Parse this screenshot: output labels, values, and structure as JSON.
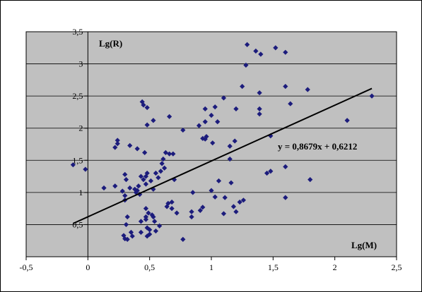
{
  "chart_data": {
    "type": "scatter",
    "title": "",
    "ylabel": "Lg(R)",
    "xlabel": "Lg(M)",
    "xlim": [
      -0.5,
      2.5
    ],
    "ylim": [
      0,
      3.5
    ],
    "x_ticks": [
      "-0,5",
      "0",
      "0,5",
      "1",
      "1,5",
      "2",
      "2,5"
    ],
    "y_ticks": [
      "0,5",
      "1",
      "1,5",
      "2",
      "2,5",
      "3",
      "3,5"
    ],
    "grid": true,
    "plot_background": "#c0c0c0",
    "marker_color": "#1c1c7c",
    "trendline": {
      "slope": 0.8679,
      "intercept": 0.6212,
      "x_range": [
        -0.12,
        2.3
      ],
      "label": "y = 0,8679x + 0,6212"
    },
    "points": [
      [
        -0.12,
        1.43
      ],
      [
        -0.02,
        1.36
      ],
      [
        0.13,
        1.07
      ],
      [
        0.22,
        1.1
      ],
      [
        0.22,
        1.7
      ],
      [
        0.24,
        1.81
      ],
      [
        0.24,
        1.76
      ],
      [
        0.28,
        1.02
      ],
      [
        0.29,
        0.33
      ],
      [
        0.3,
        0.28
      ],
      [
        0.3,
        1.28
      ],
      [
        0.3,
        0.95
      ],
      [
        0.3,
        0.88
      ],
      [
        0.31,
        1.2
      ],
      [
        0.31,
        0.5
      ],
      [
        0.32,
        0.27
      ],
      [
        0.32,
        0.62
      ],
      [
        0.34,
        1.73
      ],
      [
        0.34,
        1.07
      ],
      [
        0.35,
        0.38
      ],
      [
        0.36,
        0.32
      ],
      [
        0.38,
        1.05
      ],
      [
        0.39,
        1.0
      ],
      [
        0.4,
        1.68
      ],
      [
        0.4,
        1.03
      ],
      [
        0.41,
        1.1
      ],
      [
        0.42,
        0.97
      ],
      [
        0.43,
        0.55
      ],
      [
        0.43,
        0.38
      ],
      [
        0.43,
        1.25
      ],
      [
        0.44,
        2.41
      ],
      [
        0.45,
        2.36
      ],
      [
        0.45,
        1.2
      ],
      [
        0.46,
        1.62
      ],
      [
        0.47,
        1.25
      ],
      [
        0.47,
        1.13
      ],
      [
        0.47,
        0.75
      ],
      [
        0.47,
        0.62
      ],
      [
        0.47,
        0.58
      ],
      [
        0.48,
        0.45
      ],
      [
        0.48,
        0.32
      ],
      [
        0.48,
        2.32
      ],
      [
        0.48,
        2.05
      ],
      [
        0.48,
        1.3
      ],
      [
        0.49,
        0.68
      ],
      [
        0.5,
        0.42
      ],
      [
        0.5,
        0.35
      ],
      [
        0.51,
        1.18
      ],
      [
        0.52,
        0.65
      ],
      [
        0.53,
        0.62
      ],
      [
        0.53,
        2.12
      ],
      [
        0.53,
        1.05
      ],
      [
        0.54,
        0.55
      ],
      [
        0.55,
        0.4
      ],
      [
        0.55,
        1.3
      ],
      [
        0.57,
        1.23
      ],
      [
        0.58,
        0.48
      ],
      [
        0.59,
        1.33
      ],
      [
        0.6,
        1.45
      ],
      [
        0.61,
        1.52
      ],
      [
        0.62,
        1.38
      ],
      [
        0.63,
        1.62
      ],
      [
        0.64,
        0.78
      ],
      [
        0.65,
        0.83
      ],
      [
        0.66,
        2.18
      ],
      [
        0.66,
        1.6
      ],
      [
        0.68,
        0.85
      ],
      [
        0.68,
        0.75
      ],
      [
        0.69,
        1.6
      ],
      [
        0.7,
        1.2
      ],
      [
        0.72,
        0.68
      ],
      [
        0.77,
        0.27
      ],
      [
        0.77,
        1.97
      ],
      [
        0.84,
        0.7
      ],
      [
        0.84,
        0.62
      ],
      [
        0.85,
        1.0
      ],
      [
        0.9,
        2.04
      ],
      [
        0.91,
        0.72
      ],
      [
        0.93,
        0.77
      ],
      [
        0.93,
        1.84
      ],
      [
        0.95,
        2.3
      ],
      [
        0.95,
        2.1
      ],
      [
        0.95,
        1.83
      ],
      [
        0.96,
        1.87
      ],
      [
        1.0,
        2.2
      ],
      [
        1.0,
        1.03
      ],
      [
        1.01,
        1.77
      ],
      [
        1.03,
        0.93
      ],
      [
        1.03,
        2.33
      ],
      [
        1.05,
        2.1
      ],
      [
        1.06,
        1.18
      ],
      [
        1.1,
        0.67
      ],
      [
        1.1,
        2.47
      ],
      [
        1.11,
        0.92
      ],
      [
        1.15,
        1.72
      ],
      [
        1.15,
        1.52
      ],
      [
        1.16,
        1.15
      ],
      [
        1.18,
        0.78
      ],
      [
        1.19,
        1.8
      ],
      [
        1.2,
        0.7
      ],
      [
        1.2,
        2.3
      ],
      [
        1.23,
        0.85
      ],
      [
        1.25,
        2.65
      ],
      [
        1.26,
        0.88
      ],
      [
        1.28,
        2.98
      ],
      [
        1.29,
        3.3
      ],
      [
        1.36,
        3.2
      ],
      [
        1.39,
        2.55
      ],
      [
        1.39,
        2.3
      ],
      [
        1.39,
        2.22
      ],
      [
        1.4,
        3.15
      ],
      [
        1.45,
        1.3
      ],
      [
        1.48,
        1.33
      ],
      [
        1.48,
        1.88
      ],
      [
        1.52,
        3.25
      ],
      [
        1.6,
        3.18
      ],
      [
        1.6,
        2.65
      ],
      [
        1.6,
        1.4
      ],
      [
        1.6,
        0.92
      ],
      [
        1.64,
        2.38
      ],
      [
        1.78,
        2.6
      ],
      [
        1.8,
        1.2
      ],
      [
        2.1,
        2.12
      ],
      [
        2.3,
        2.5
      ]
    ]
  }
}
